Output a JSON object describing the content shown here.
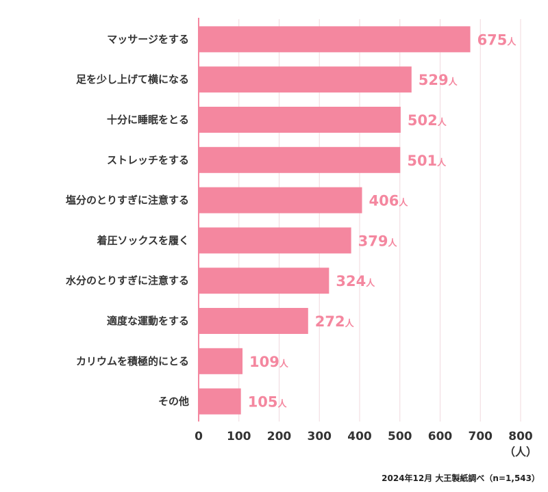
{
  "chart_data": {
    "type": "bar",
    "orientation": "horizontal",
    "categories": [
      "マッサージをする",
      "足を少し上げて横になる",
      "十分に睡眠をとる",
      "ストレッチをする",
      "塩分のとりすぎに注意する",
      "着圧ソックスを履く",
      "水分のとりすぎに注意する",
      "適度な運動をする",
      "カリウムを積極的にとる",
      "その他"
    ],
    "values": [
      675,
      529,
      502,
      501,
      406,
      379,
      324,
      272,
      109,
      105
    ],
    "value_suffix": "人",
    "xlim": [
      0,
      800
    ],
    "xticks": [
      "0",
      "100",
      "200",
      "300",
      "400",
      "500",
      "600",
      "700",
      "800"
    ],
    "xunit": "（人）",
    "grid": true,
    "bar_color": "#f4879f",
    "label_color": "#f4879f",
    "axis_color": "#f4879f",
    "grid_color": "#f0d8de"
  },
  "source": "2024年12月 大王製紙調べ（n=1,543）"
}
